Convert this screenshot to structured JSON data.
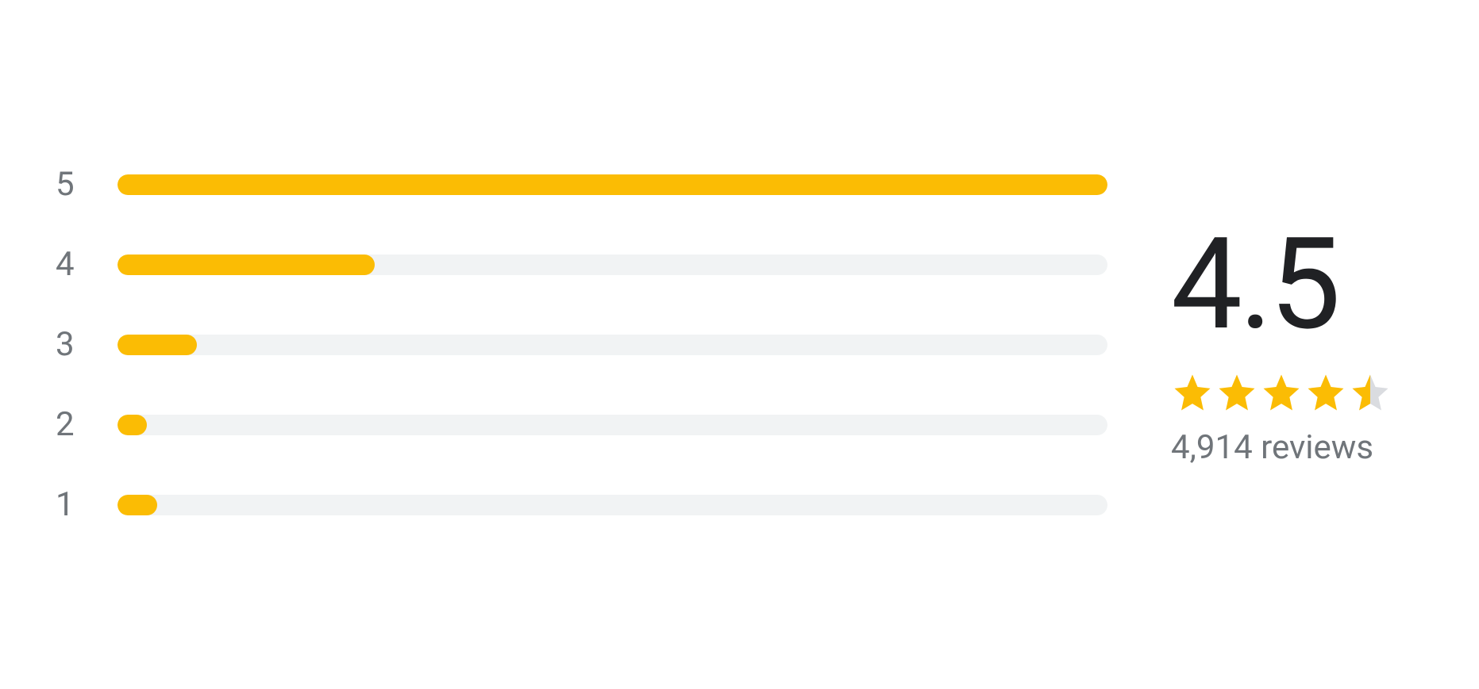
{
  "rating_summary": {
    "average": "4.5",
    "review_count": "4,914 reviews",
    "star_rating": 4.5,
    "colors": {
      "bar_fill": "#fbbc04",
      "bar_track": "#f1f3f4",
      "star_fill": "#fbbc04",
      "star_empty": "#dadce0",
      "text_dark": "#202124",
      "text_muted": "#70757a",
      "background": "#ffffff"
    },
    "typography": {
      "rating_number_fontsize": 160,
      "label_fontsize": 42,
      "review_count_fontsize": 42
    },
    "distribution": [
      {
        "label": "5",
        "percent": 100
      },
      {
        "label": "4",
        "percent": 26
      },
      {
        "label": "3",
        "percent": 8
      },
      {
        "label": "2",
        "percent": 3
      },
      {
        "label": "1",
        "percent": 4
      }
    ]
  }
}
